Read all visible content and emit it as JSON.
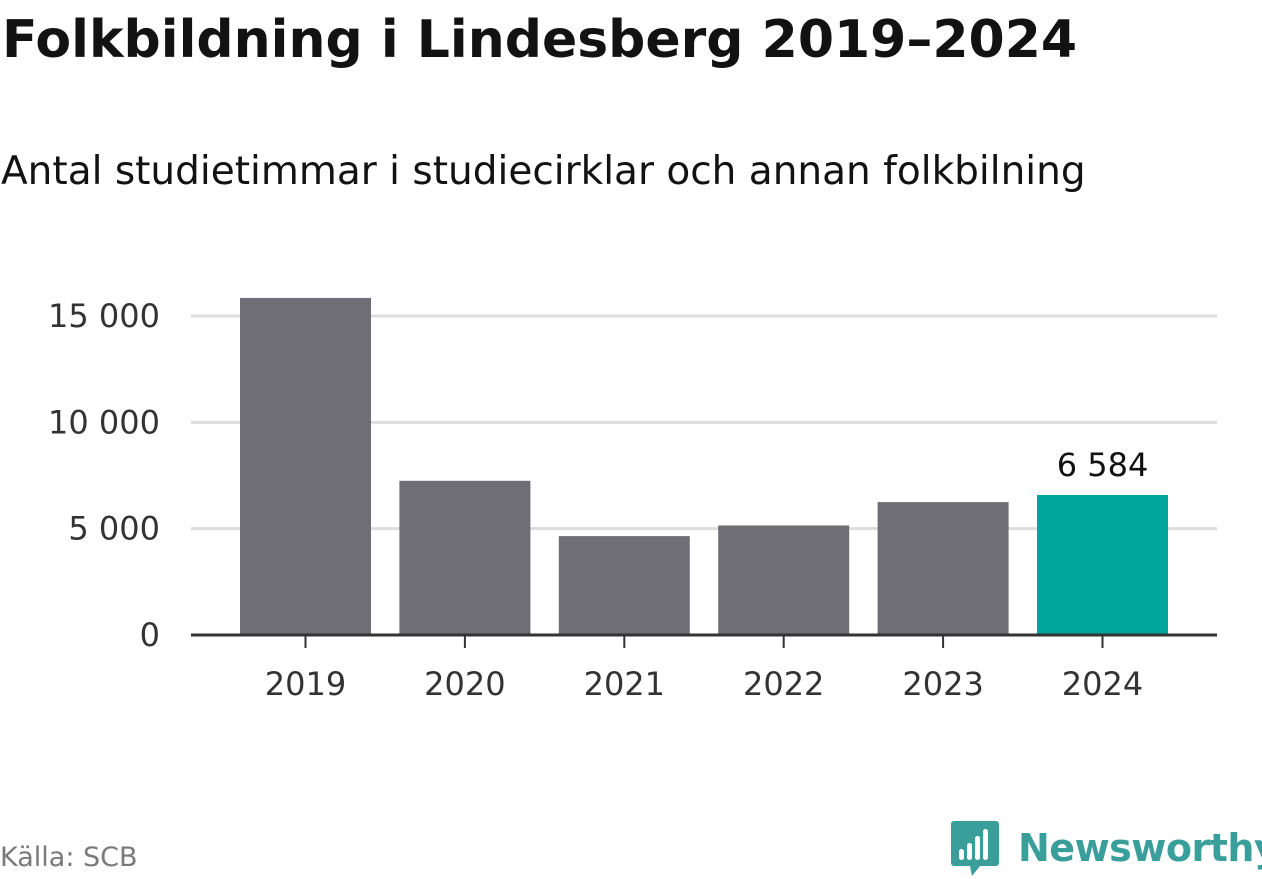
{
  "header": {
    "title": "Folkbildning i Lindesberg 2019–2024",
    "subtitle": "Antal studietimmar i studiecirklar och annan folkbilning"
  },
  "footer": {
    "source": "Källa: SCB",
    "brand": "Newsworthy"
  },
  "colors": {
    "bar": "#6f6e74",
    "highlight": "#00a59b",
    "grid": "#dddddd",
    "axis": "#333333",
    "brand": "#3a9e9a"
  },
  "icons": {
    "brand": "newsworthy-logo-icon"
  },
  "chart_data": {
    "type": "bar",
    "categories": [
      "2019",
      "2020",
      "2021",
      "2022",
      "2023",
      "2024"
    ],
    "values": [
      15850,
      7250,
      4650,
      5150,
      6250,
      6584
    ],
    "highlight_index": 5,
    "data_labels": [
      {
        "index": 5,
        "text": "6 584"
      }
    ],
    "yticks": [
      0,
      5000,
      10000,
      15000
    ],
    "ytick_labels": [
      "0",
      "5 000",
      "10 000",
      "15 000"
    ],
    "ylim": [
      0,
      16500
    ],
    "grid": true,
    "legend": "none"
  }
}
